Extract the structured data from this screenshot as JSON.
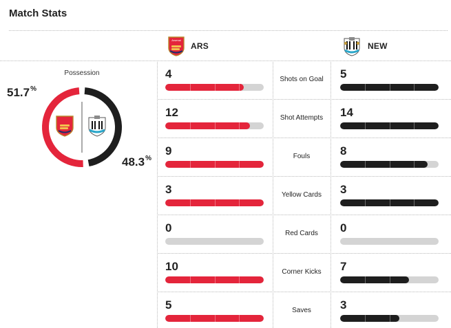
{
  "header": {
    "title": "Match Stats"
  },
  "teams": {
    "home": {
      "abbr": "ARS",
      "badge_text": "Arsenal",
      "color": "#e4253b"
    },
    "away": {
      "abbr": "NEW",
      "color": "#1e1e1e"
    }
  },
  "possession": {
    "label": "Possession",
    "home_pct": "51.7",
    "away_pct": "48.3",
    "home_value": 51.7,
    "away_value": 48.3,
    "pct_sign": "%"
  },
  "stats": [
    {
      "label": "Shots on Goal",
      "home": "4",
      "away": "5",
      "home_fill": 0.8,
      "away_fill": 1.0
    },
    {
      "label": "Shot Attempts",
      "home": "12",
      "away": "14",
      "home_fill": 0.86,
      "away_fill": 1.0
    },
    {
      "label": "Fouls",
      "home": "9",
      "away": "8",
      "home_fill": 1.0,
      "away_fill": 0.89
    },
    {
      "label": "Yellow Cards",
      "home": "3",
      "away": "3",
      "home_fill": 1.0,
      "away_fill": 1.0
    },
    {
      "label": "Red Cards",
      "home": "0",
      "away": "0",
      "home_fill": 0.0,
      "away_fill": 0.0
    },
    {
      "label": "Corner Kicks",
      "home": "10",
      "away": "7",
      "home_fill": 1.0,
      "away_fill": 0.7
    },
    {
      "label": "Saves",
      "home": "5",
      "away": "3",
      "home_fill": 1.0,
      "away_fill": 0.6
    }
  ]
}
